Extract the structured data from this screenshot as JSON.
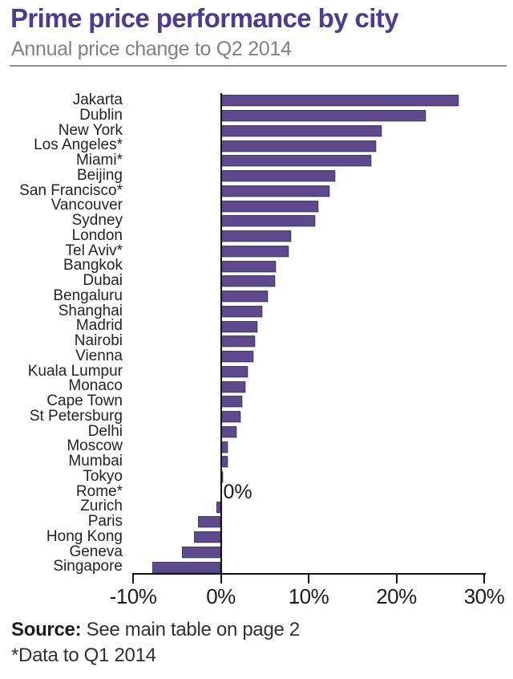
{
  "header": {
    "title": "Prime price performance by city",
    "subtitle": "Annual price change to Q2 2014",
    "title_color": "#4b3b92",
    "subtitle_color": "#7f8183"
  },
  "chart_data": {
    "type": "bar",
    "orientation": "horizontal",
    "title": "Prime price performance by city",
    "subtitle": "Annual price change to Q2 2014",
    "unit": "%",
    "xlim": [
      -10,
      30
    ],
    "grid": false,
    "categories": [
      "Jakarta",
      "Dublin",
      "New York",
      "Los Angeles*",
      "Miami*",
      "Beijing",
      "San Francisco*",
      "Vancouver",
      "Sydney",
      "London",
      "Tel Aviv*",
      "Bangkok",
      "Dubai",
      "Bengaluru",
      "Shanghai",
      "Madrid",
      "Nairobi",
      "Vienna",
      "Kuala Lumpur",
      "Monaco",
      "Cape Town",
      "St Petersburg",
      "Delhi",
      "Moscow",
      "Mumbai",
      "Tokyo",
      "Rome*",
      "Zurich",
      "Paris",
      "Hong Kong",
      "Geneva",
      "Singapore"
    ],
    "values": [
      27.1,
      23.3,
      18.3,
      17.7,
      17.1,
      13.0,
      12.4,
      11.1,
      10.7,
      8.0,
      7.7,
      6.3,
      6.2,
      5.3,
      4.7,
      4.2,
      3.9,
      3.7,
      3.1,
      2.8,
      2.4,
      2.2,
      1.8,
      0.8,
      0.8,
      0.2,
      0.0,
      -0.5,
      -2.6,
      -3.1,
      -4.4,
      -7.8
    ],
    "x_ticks": {
      "labels": [
        "-10%",
        "0%",
        "10%",
        "20%",
        "30%"
      ],
      "values": [
        -10,
        0,
        10,
        20,
        30
      ]
    },
    "annotation": {
      "text": "0%",
      "category": "Rome*"
    },
    "bar_color": "#5c4a8c",
    "bar_border_color": "#483a70",
    "axis_color": "#141414"
  },
  "footer": {
    "source_label": "Source:",
    "source_text": " See main table on page 2",
    "footnote": "*Data to Q1 2014"
  }
}
